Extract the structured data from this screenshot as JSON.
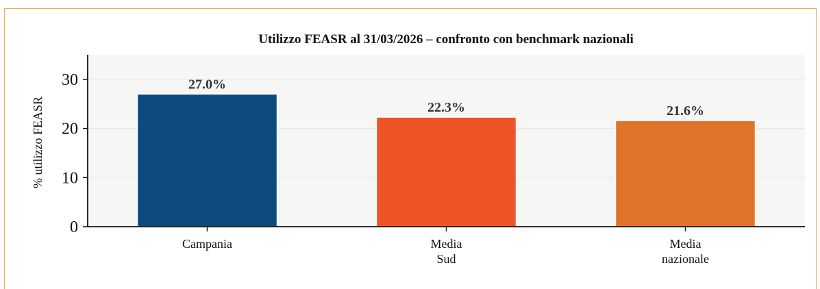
{
  "chart_data": {
    "type": "bar",
    "title": "Utilizzo FEASR al 31/03/2026 – confronto con benchmark nazionali",
    "ylabel": "% utilizzo FEASR",
    "xlabel": "",
    "ylim": [
      0,
      35
    ],
    "yticks": [
      0,
      10,
      20,
      30
    ],
    "grid": true,
    "categories": [
      [
        "Campania"
      ],
      [
        "Media",
        "Sud"
      ],
      [
        "Media",
        "nazionale"
      ]
    ],
    "values": [
      27.0,
      22.3,
      21.6
    ],
    "value_labels": [
      "27.0%",
      "22.3%",
      "21.6%"
    ],
    "colors": [
      "#0d4a7d",
      "#ee5428",
      "#df7428"
    ],
    "plot_background": "#f6f6f4"
  }
}
